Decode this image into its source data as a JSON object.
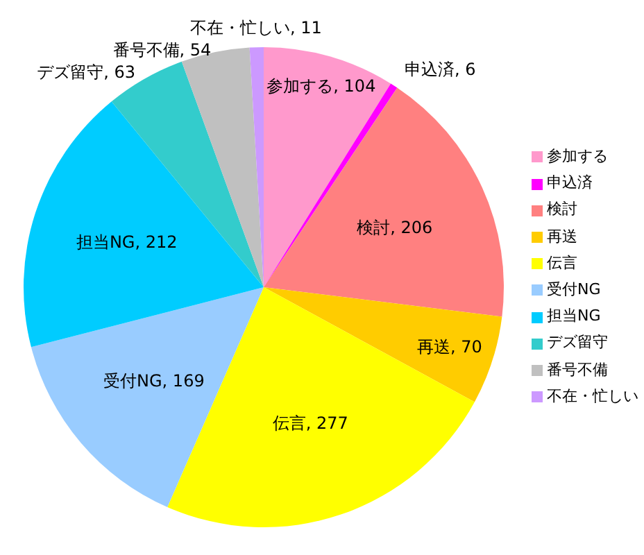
{
  "chart_data": {
    "type": "pie",
    "categories": [
      "参加する",
      "申込済",
      "検討",
      "再送",
      "伝言",
      "受付NG",
      "担当NG",
      "デズ留守",
      "番号不備",
      "不在・忙しい"
    ],
    "values": [
      104,
      6,
      206,
      70,
      277,
      169,
      212,
      63,
      54,
      11
    ],
    "value_labels": [
      "参加する, 104",
      "申込済, 6",
      "検討, 206",
      "再送, 70",
      "伝言, 277",
      "受付NG, 169",
      "担当NG, 212",
      "デズ留守, 63",
      "番号不備, 54",
      "不在・忙しい, 11"
    ],
    "colors": [
      "#ff99cc",
      "#ff00ff",
      "#ff8080",
      "#ffcc00",
      "#ffff00",
      "#99ccff",
      "#00ccff",
      "#33cccc",
      "#c0c0c0",
      "#cc99ff"
    ],
    "legend": "right"
  }
}
